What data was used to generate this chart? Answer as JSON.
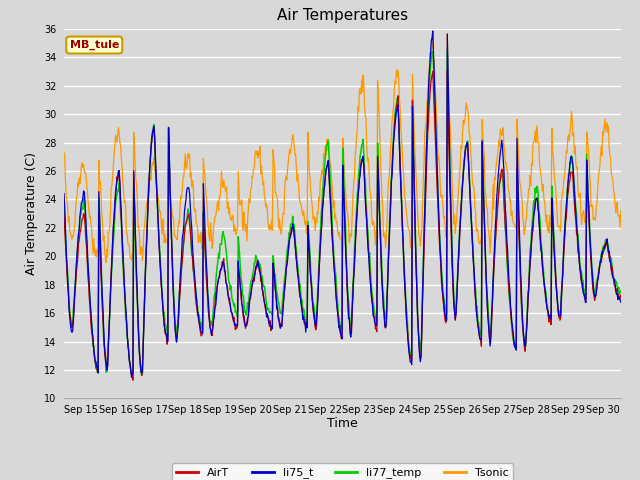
{
  "title": "Air Temperatures",
  "xlabel": "Time",
  "ylabel": "Air Temperature (C)",
  "ylim": [
    10,
    36
  ],
  "yticks": [
    10,
    12,
    14,
    16,
    18,
    20,
    22,
    24,
    26,
    28,
    30,
    32,
    34,
    36
  ],
  "x_labels": [
    "Sep 15",
    "Sep 16",
    "Sep 17",
    "Sep 18",
    "Sep 19",
    "Sep 20",
    "Sep 21",
    "Sep 22",
    "Sep 23",
    "Sep 24",
    "Sep 25",
    "Sep 26",
    "Sep 27",
    "Sep 28",
    "Sep 29",
    "Sep 30"
  ],
  "background_color": "#d8d8d8",
  "plot_bg_color": "#d8d8d8",
  "grid_color": "#ffffff",
  "colors": {
    "AirT": "#cc0000",
    "li75_t": "#0000cc",
    "li77_temp": "#00cc00",
    "Tsonic": "#ff9900"
  },
  "station_label": "MB_tule",
  "station_label_color": "#990000",
  "station_box_color": "#ffffcc",
  "station_box_edge": "#cc9900",
  "n_days": 16,
  "pts_per_day": 48,
  "daily_min_air": [
    15.0,
    12.0,
    11.5,
    14.0,
    14.5,
    15.0,
    15.0,
    15.0,
    14.5,
    15.0,
    12.5,
    15.5,
    14.0,
    13.5,
    15.5,
    17.0
  ],
  "daily_max_air": [
    23.0,
    26.0,
    29.0,
    23.0,
    19.5,
    19.5,
    22.0,
    26.5,
    27.0,
    31.0,
    33.0,
    28.0,
    26.0,
    24.0,
    26.0,
    21.0
  ],
  "daily_min_li75": [
    14.5,
    12.0,
    11.5,
    14.0,
    14.5,
    15.0,
    15.0,
    15.0,
    14.5,
    15.0,
    12.5,
    15.5,
    14.0,
    13.5,
    15.5,
    17.0
  ],
  "daily_max_li75": [
    24.5,
    26.0,
    29.0,
    25.0,
    19.5,
    19.5,
    22.0,
    26.5,
    27.0,
    30.5,
    35.5,
    28.0,
    28.0,
    24.0,
    27.0,
    21.0
  ],
  "daily_min_li77": [
    15.0,
    12.0,
    11.5,
    14.5,
    15.0,
    16.0,
    16.0,
    15.5,
    15.0,
    15.5,
    13.0,
    16.0,
    14.5,
    13.5,
    15.5,
    17.5
  ],
  "daily_max_li77": [
    24.0,
    25.0,
    29.0,
    23.0,
    21.5,
    20.0,
    22.5,
    28.0,
    28.0,
    31.0,
    34.5,
    28.0,
    26.0,
    25.0,
    27.0,
    21.0
  ],
  "daily_min_tson": [
    21.0,
    20.0,
    20.0,
    21.0,
    21.0,
    22.0,
    22.0,
    22.0,
    21.0,
    21.0,
    21.0,
    22.0,
    21.0,
    22.0,
    22.0,
    22.5
  ],
  "daily_max_tson": [
    26.5,
    29.0,
    26.5,
    27.0,
    25.0,
    27.5,
    28.0,
    28.0,
    32.5,
    33.0,
    35.0,
    30.5,
    29.0,
    28.5,
    29.5,
    29.5
  ]
}
